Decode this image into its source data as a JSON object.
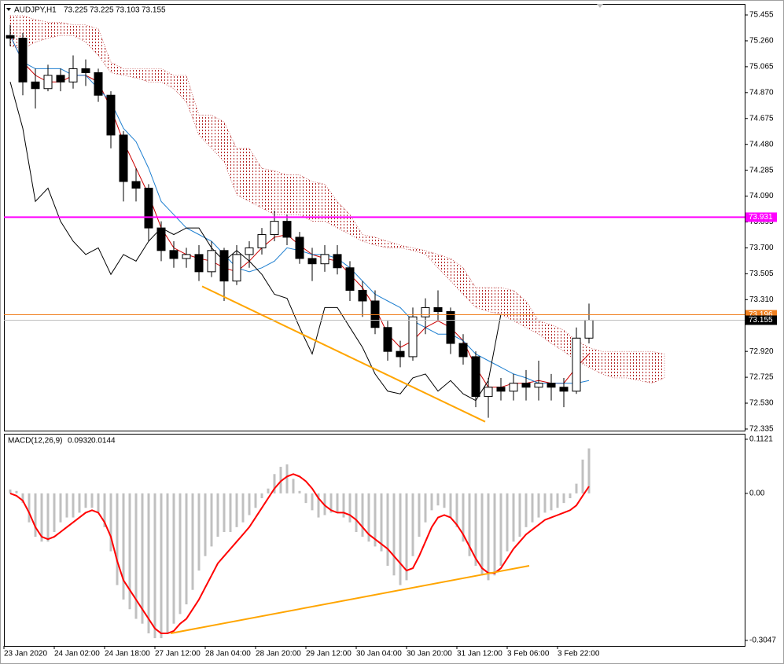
{
  "chart_data": [
    {
      "type": "candlestick",
      "title": "AUDJPY,H1",
      "ohlc": [
        73.225,
        73.225,
        73.103,
        73.155
      ],
      "up_color": "#ffffff",
      "down_color": "#000000",
      "x": [
        2,
        6,
        10,
        14,
        18,
        22,
        26,
        30,
        34,
        38,
        42,
        46,
        50,
        54,
        58,
        62,
        66,
        70,
        74,
        78,
        82,
        86,
        90,
        94,
        98,
        102,
        106,
        110,
        114,
        118,
        122,
        126,
        130,
        134,
        138,
        142,
        146,
        150,
        154,
        158,
        162,
        166,
        170,
        174,
        178,
        182,
        186
      ],
      "open": [
        75.3,
        75.28,
        74.95,
        74.9,
        75.0,
        74.95,
        75.05,
        75.02,
        74.85,
        74.55,
        74.2,
        74.15,
        73.85,
        73.68,
        73.62,
        73.65,
        73.52,
        73.68,
        73.45,
        73.65,
        73.7,
        73.8,
        73.9,
        73.78,
        73.62,
        73.58,
        73.65,
        73.55,
        73.38,
        73.3,
        73.1,
        72.92,
        72.88,
        73.18,
        73.25,
        73.22,
        72.98,
        72.88,
        72.58,
        72.65,
        72.62,
        72.68,
        72.65,
        72.68,
        72.65,
        72.62,
        73.02
      ],
      "high": [
        75.38,
        75.32,
        75.05,
        75.08,
        75.05,
        75.15,
        75.12,
        75.05,
        74.88,
        74.58,
        74.3,
        74.18,
        73.9,
        73.75,
        73.7,
        73.72,
        73.75,
        73.7,
        73.72,
        73.75,
        73.85,
        73.98,
        73.95,
        73.82,
        73.7,
        73.72,
        73.72,
        73.6,
        73.45,
        73.38,
        73.15,
        73.0,
        73.25,
        73.32,
        73.38,
        73.25,
        73.05,
        72.92,
        72.72,
        72.72,
        72.75,
        72.78,
        72.85,
        72.75,
        72.72,
        73.1,
        73.28
      ],
      "low": [
        75.22,
        74.85,
        74.75,
        74.88,
        74.88,
        74.9,
        74.92,
        74.8,
        74.45,
        74.05,
        74.05,
        73.75,
        73.6,
        73.55,
        73.55,
        73.45,
        73.48,
        73.3,
        73.42,
        73.55,
        73.65,
        73.75,
        73.72,
        73.58,
        73.45,
        73.52,
        73.5,
        73.3,
        73.18,
        73.05,
        72.85,
        72.8,
        72.85,
        73.05,
        73.15,
        72.9,
        72.82,
        72.5,
        72.42,
        72.55,
        72.55,
        72.55,
        72.55,
        72.55,
        72.5,
        72.6,
        72.98
      ],
      "close": [
        75.28,
        74.95,
        74.9,
        75.0,
        74.95,
        75.05,
        75.02,
        74.85,
        74.55,
        74.2,
        74.15,
        73.85,
        73.68,
        73.62,
        73.65,
        73.52,
        73.68,
        73.45,
        73.65,
        73.7,
        73.8,
        73.9,
        73.78,
        73.62,
        73.58,
        73.65,
        73.55,
        73.38,
        73.3,
        73.1,
        72.92,
        72.88,
        73.18,
        73.25,
        73.22,
        72.98,
        72.88,
        72.58,
        72.65,
        72.62,
        72.68,
        72.65,
        72.68,
        72.65,
        72.62,
        73.02,
        73.155
      ],
      "cloud": {
        "color": "#b22222",
        "x": [
          2,
          6,
          10,
          14,
          18,
          22,
          26,
          30,
          34,
          38,
          42,
          46,
          50,
          54,
          58,
          62,
          66,
          70,
          74,
          78,
          82,
          86,
          90,
          94,
          98,
          102,
          106,
          110,
          114,
          118,
          122,
          126,
          130,
          134,
          138,
          142,
          146,
          150,
          154,
          158,
          162,
          166,
          170,
          174,
          178,
          182,
          186,
          190,
          194,
          198,
          202,
          206,
          210
        ],
        "upper": [
          75.45,
          75.45,
          75.42,
          75.4,
          75.4,
          75.38,
          75.38,
          75.35,
          75.1,
          75.05,
          75.05,
          75.05,
          75.05,
          75.0,
          75.0,
          74.7,
          74.7,
          74.65,
          74.45,
          74.45,
          74.3,
          74.28,
          74.25,
          74.25,
          74.2,
          74.18,
          74.05,
          73.95,
          73.8,
          73.78,
          73.75,
          73.72,
          73.7,
          73.68,
          73.65,
          73.62,
          73.55,
          73.4,
          73.4,
          73.4,
          73.38,
          73.3,
          73.15,
          73.12,
          73.08,
          73.0,
          72.95,
          72.92,
          72.92,
          72.92,
          72.92,
          72.92,
          72.9
        ],
        "lower": [
          75.22,
          75.2,
          75.25,
          75.28,
          75.3,
          75.3,
          75.25,
          75.15,
          75.02,
          75.0,
          74.98,
          74.95,
          74.95,
          74.9,
          74.8,
          74.55,
          74.45,
          74.35,
          74.1,
          74.05,
          74.0,
          73.95,
          73.95,
          73.95,
          73.9,
          73.9,
          73.85,
          73.8,
          73.75,
          73.72,
          73.7,
          73.7,
          73.68,
          73.65,
          73.55,
          73.45,
          73.35,
          73.25,
          73.22,
          73.2,
          73.15,
          73.1,
          73.05,
          72.98,
          72.92,
          72.85,
          72.8,
          72.75,
          72.72,
          72.72,
          72.7,
          72.68,
          72.72
        ]
      },
      "lines": [
        {
          "color": "#cc0000",
          "values": [
            75.3,
            75.1,
            75.0,
            74.95,
            74.95,
            75.0,
            75.0,
            74.95,
            74.75,
            74.5,
            74.3,
            74.1,
            73.85,
            73.7,
            73.65,
            73.62,
            73.6,
            73.55,
            73.52,
            73.6,
            73.7,
            73.78,
            73.8,
            73.72,
            73.65,
            73.62,
            73.6,
            73.5,
            73.4,
            73.25,
            73.05,
            72.95,
            73.0,
            73.1,
            73.15,
            73.1,
            73.0,
            72.8,
            72.65,
            72.65,
            72.68,
            72.68,
            72.7,
            72.68,
            72.68,
            72.8,
            72.9
          ]
        },
        {
          "color": "#1e7fd0",
          "values": [
            75.3,
            75.1,
            75.05,
            75.05,
            75.05,
            75.0,
            75.0,
            74.9,
            74.8,
            74.6,
            74.5,
            74.3,
            74.05,
            73.95,
            73.85,
            73.8,
            73.75,
            73.65,
            73.55,
            73.52,
            73.55,
            73.6,
            73.7,
            73.68,
            73.65,
            73.65,
            73.62,
            73.55,
            73.45,
            73.35,
            73.3,
            73.25,
            73.15,
            73.1,
            73.05,
            73.05,
            73.0,
            72.9,
            72.85,
            72.8,
            72.75,
            72.72,
            72.68,
            72.68,
            72.68,
            72.68,
            72.7
          ]
        },
        {
          "color": "#000000",
          "values": [
            74.95,
            74.6,
            74.05,
            74.15,
            73.9,
            73.75,
            73.65,
            73.7,
            73.5,
            73.65,
            73.6,
            73.75,
            73.85,
            73.8,
            73.85,
            73.85,
            73.7,
            73.6,
            73.68,
            73.6,
            73.5,
            73.35,
            73.32,
            73.1,
            72.9,
            73.25,
            73.25,
            73.1,
            72.95,
            72.75,
            72.62,
            72.6,
            72.72,
            72.75,
            72.62,
            72.7,
            72.6,
            72.55,
            72.7,
            73.2,
            null,
            null,
            null,
            null,
            null,
            null,
            null
          ]
        }
      ],
      "levels": [
        {
          "value": 73.931,
          "color": "#ff00ff",
          "badge": "#ff00ff"
        },
        {
          "value": 73.196,
          "color": "#f08020",
          "badge": "#f08020"
        },
        {
          "value": 73.155,
          "color": "#c0c0c0",
          "badge": "#000000"
        }
      ],
      "trendline": {
        "color": "#ffa500",
        "x": [
          63,
          153
        ],
        "values": [
          73.41,
          72.39
        ]
      },
      "xlim": [
        0,
        235.5
      ],
      "ylim": [
        72.323,
        75.538
      ],
      "yticks": [
        {
          "value": 75.455,
          "label": "75.455"
        },
        {
          "value": 75.26,
          "label": "75.260"
        },
        {
          "value": 75.065,
          "label": "75.065"
        },
        {
          "value": 74.87,
          "label": "74.870"
        },
        {
          "value": 74.675,
          "label": "74.675"
        },
        {
          "value": 74.48,
          "label": "74.480"
        },
        {
          "value": 74.285,
          "label": "74.285"
        },
        {
          "value": 74.09,
          "label": "74.090"
        },
        {
          "value": 73.895,
          "label": "73.895"
        },
        {
          "value": 73.7,
          "label": "73.700"
        },
        {
          "value": 73.505,
          "label": "73.505"
        },
        {
          "value": 73.31,
          "label": "73.310"
        },
        {
          "value": 72.92,
          "label": "72.920"
        },
        {
          "value": 72.725,
          "label": "72.725"
        },
        {
          "value": 72.53,
          "label": "72.530"
        },
        {
          "value": 72.335,
          "label": "72.335"
        }
      ]
    },
    {
      "type": "macd",
      "title": "MACD(12,26,9)",
      "x": [
        2,
        4,
        6,
        8,
        10,
        12,
        14,
        16,
        18,
        20,
        22,
        24,
        26,
        28,
        30,
        32,
        34,
        36,
        38,
        40,
        42,
        44,
        46,
        48,
        50,
        52,
        54,
        56,
        58,
        60,
        62,
        64,
        66,
        68,
        70,
        72,
        74,
        76,
        78,
        80,
        82,
        84,
        86,
        88,
        90,
        92,
        94,
        96,
        98,
        100,
        102,
        104,
        106,
        108,
        110,
        112,
        114,
        116,
        118,
        120,
        122,
        124,
        126,
        128,
        130,
        132,
        134,
        136,
        138,
        140,
        142,
        144,
        146,
        148,
        150,
        152,
        154,
        156,
        158,
        160,
        162,
        164,
        166,
        168,
        170,
        172,
        174,
        176,
        178,
        180,
        182,
        184,
        186
      ],
      "series": [
        {
          "color": "#c0c0c0",
          "values": [
            0.008,
            0.005,
            -0.02,
            -0.06,
            -0.09,
            -0.1,
            -0.1,
            -0.08,
            -0.06,
            -0.05,
            -0.05,
            -0.04,
            -0.03,
            -0.03,
            -0.04,
            -0.07,
            -0.12,
            -0.19,
            -0.22,
            -0.24,
            -0.26,
            -0.27,
            -0.29,
            -0.3,
            -0.3,
            -0.29,
            -0.27,
            -0.25,
            -0.23,
            -0.2,
            -0.16,
            -0.13,
            -0.11,
            -0.09,
            -0.08,
            -0.08,
            -0.07,
            -0.06,
            -0.045,
            -0.03,
            -0.01,
            0.01,
            0.04,
            0.055,
            0.06,
            0.03,
            0.005,
            -0.02,
            -0.035,
            -0.05,
            -0.045,
            -0.04,
            -0.04,
            -0.05,
            -0.06,
            -0.08,
            -0.09,
            -0.1,
            -0.11,
            -0.12,
            -0.15,
            -0.17,
            -0.19,
            -0.18,
            -0.13,
            -0.09,
            -0.06,
            -0.035,
            -0.025,
            -0.03,
            -0.05,
            -0.07,
            -0.1,
            -0.13,
            -0.15,
            -0.17,
            -0.18,
            -0.17,
            -0.15,
            -0.12,
            -0.1,
            -0.09,
            -0.07,
            -0.06,
            -0.05,
            -0.04,
            -0.035,
            -0.03,
            -0.02,
            -0.01,
            0.02,
            0.07,
            0.0932
          ]
        },
        {
          "color": "#ff0000",
          "values": [
            0.0,
            -0.005,
            -0.015,
            -0.04,
            -0.07,
            -0.09,
            -0.095,
            -0.09,
            -0.08,
            -0.07,
            -0.06,
            -0.05,
            -0.04,
            -0.035,
            -0.04,
            -0.06,
            -0.09,
            -0.14,
            -0.18,
            -0.2,
            -0.22,
            -0.24,
            -0.26,
            -0.28,
            -0.29,
            -0.29,
            -0.285,
            -0.27,
            -0.26,
            -0.24,
            -0.22,
            -0.195,
            -0.17,
            -0.145,
            -0.13,
            -0.115,
            -0.1,
            -0.085,
            -0.07,
            -0.05,
            -0.03,
            -0.01,
            0.01,
            0.025,
            0.035,
            0.04,
            0.035,
            0.025,
            0.01,
            -0.01,
            -0.025,
            -0.035,
            -0.04,
            -0.04,
            -0.045,
            -0.055,
            -0.07,
            -0.085,
            -0.095,
            -0.105,
            -0.115,
            -0.13,
            -0.145,
            -0.16,
            -0.155,
            -0.13,
            -0.1,
            -0.07,
            -0.05,
            -0.045,
            -0.05,
            -0.065,
            -0.085,
            -0.11,
            -0.135,
            -0.155,
            -0.165,
            -0.165,
            -0.155,
            -0.135,
            -0.115,
            -0.1,
            -0.085,
            -0.075,
            -0.065,
            -0.055,
            -0.05,
            -0.045,
            -0.04,
            -0.035,
            -0.025,
            -0.005,
            0.0144
          ]
        }
      ],
      "trendline": {
        "color": "#ffa500",
        "x": [
          53,
          167
        ],
        "values": [
          -0.29,
          -0.15
        ]
      },
      "xlim": [
        0,
        235.5
      ],
      "ylim": [
        -0.3161,
        0.1235
      ],
      "yticks": [
        0.1121,
        {
          "value": 0,
          "label": "0.00"
        },
        -0.3047
      ],
      "xticks": [
        {
          "value": 0,
          "label": "23 Jan 2020"
        },
        {
          "value": 16,
          "label": "24 Jan 02:00"
        },
        {
          "value": 32,
          "label": "24 Jan 18:00"
        },
        {
          "value": 48,
          "label": "27 Jan 12:00"
        },
        {
          "value": 64,
          "label": "28 Jan 04:00"
        },
        {
          "value": 80,
          "label": "28 Jan 20:00"
        },
        {
          "value": 96,
          "label": "29 Jan 12:00"
        },
        {
          "value": 112,
          "label": "30 Jan 04:00"
        },
        {
          "value": 128,
          "label": "30 Jan 20:00"
        },
        {
          "value": 144,
          "label": "31 Jan 12:00"
        },
        {
          "value": 160,
          "label": "3 Feb 06:00"
        },
        {
          "value": 176,
          "label": "3 Feb 22:00"
        }
      ]
    }
  ]
}
